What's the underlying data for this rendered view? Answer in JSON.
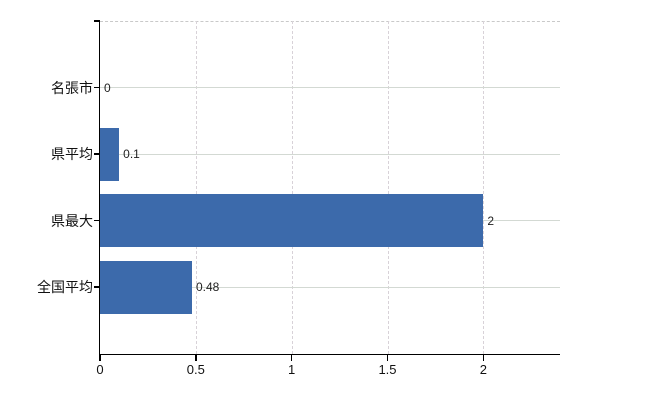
{
  "chart_data": {
    "type": "bar",
    "orientation": "horizontal",
    "categories": [
      "名張市",
      "県平均",
      "県最大",
      "全国平均"
    ],
    "values": [
      0,
      0.1,
      2,
      0.48
    ],
    "value_labels": [
      "0",
      "0.1",
      "2",
      "0.48"
    ],
    "x_ticks": [
      0,
      0.5,
      1,
      1.5,
      2
    ],
    "x_tick_labels": [
      "0",
      "0.5",
      "1",
      "1.5",
      "2"
    ],
    "xlim": [
      0,
      2.4
    ],
    "grid": true,
    "legend": false,
    "colors": {
      "bar": "#3c6aab",
      "axis": "#000000",
      "h_gridline": "#d3d9d3",
      "v_gridline": "#d8d2d8",
      "plot_top_border": "#c9c9c9",
      "background": "#ffffff",
      "tick_label": "#111111",
      "value_label": "#1f1f1f"
    }
  }
}
